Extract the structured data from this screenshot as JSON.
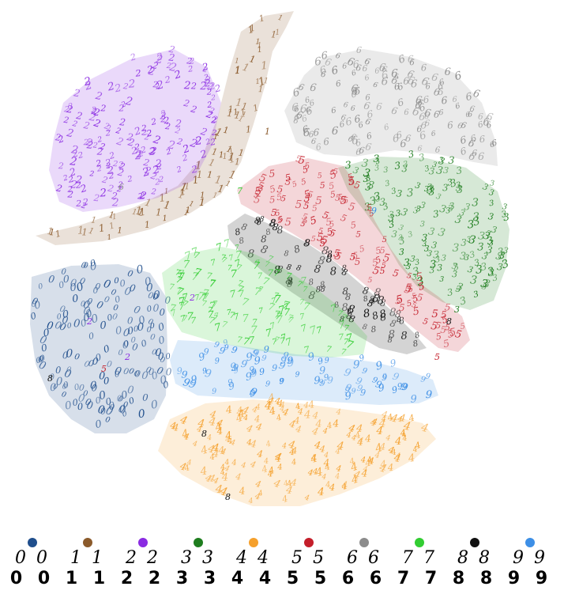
{
  "figure": {
    "clusters": [
      {
        "digit": "0",
        "color": "#1f4e8c"
      },
      {
        "digit": "1",
        "color": "#8b5a2b"
      },
      {
        "digit": "2",
        "color": "#8a2be2"
      },
      {
        "digit": "3",
        "color": "#1e7d1e"
      },
      {
        "digit": "4",
        "color": "#f5a02c"
      },
      {
        "digit": "5",
        "color": "#c41e2a"
      },
      {
        "digit": "6",
        "color": "#8c8c8c"
      },
      {
        "digit": "7",
        "color": "#32cd32"
      },
      {
        "digit": "8",
        "color": "#111111"
      },
      {
        "digit": "9",
        "color": "#3d8fe6"
      }
    ],
    "legend": [
      {
        "color": "#1f4e8c",
        "row1": "0 0",
        "row2": "0 0"
      },
      {
        "color": "#8b5a2b",
        "row1": "1 1",
        "row2": "1 1"
      },
      {
        "color": "#8a2be2",
        "row1": "2 2",
        "row2": "2 2"
      },
      {
        "color": "#1e7d1e",
        "row1": "3 3",
        "row2": "3 3"
      },
      {
        "color": "#f5a02c",
        "row1": "4 4",
        "row2": "4 4"
      },
      {
        "color": "#c41e2a",
        "row1": "5 5",
        "row2": "5 5"
      },
      {
        "color": "#8c8c8c",
        "row1": "6 6",
        "row2": "6 6"
      },
      {
        "color": "#32cd32",
        "row1": "7 7",
        "row2": "7 7"
      },
      {
        "color": "#111111",
        "row1": "8 8",
        "row2": "8 8"
      },
      {
        "color": "#3d8fe6",
        "row1": "9 9",
        "row2": "9 9"
      }
    ]
  }
}
